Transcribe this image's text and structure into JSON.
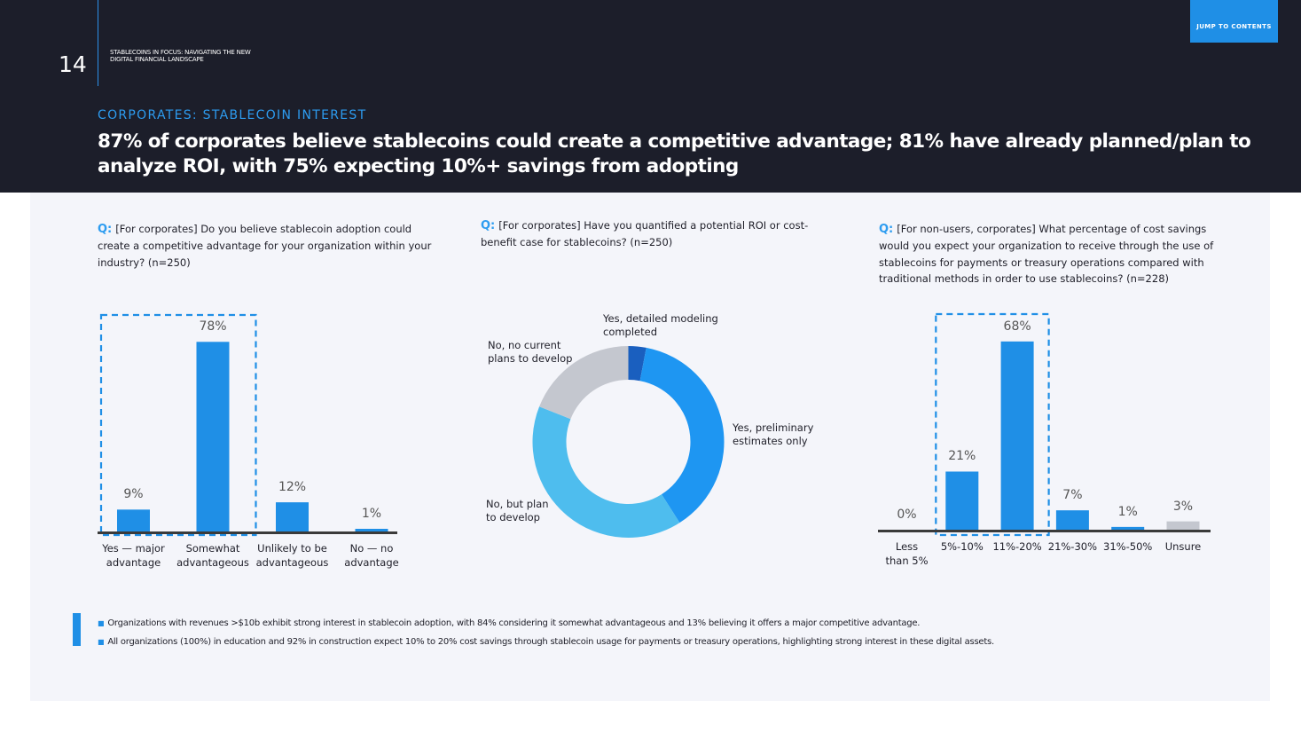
{
  "header": {
    "page_number": "14",
    "doc_title": "STABLECOINS IN FOCUS: NAVIGATING THE NEW DIGITAL FINANCIAL LANDSCAPE",
    "jump_button": "JUMP TO CONTENTS",
    "section_label": "CORPORATES: STABLECOIN INTEREST",
    "headline": "87% of corporates believe stablecoins could create a competitive advantage; 81% have already planned/plan to analyze ROI, with 75% expecting 10%+ savings from adopting"
  },
  "q_prefix": "Q:",
  "questions": {
    "q1": "[For corporates] Do you believe stablecoin adoption could create a competitive advantage for your organization within your industry?  (n=250)",
    "q2": "[For corporates] Have you quantified a potential ROI or cost-benefit case for stablecoins? (n=250)",
    "q3": "[For non-users, corporates] What percentage of cost savings would you expect your organization to receive through the use of stablecoins for payments or treasury operations compared with traditional methods in order to use stablecoins? (n=228)"
  },
  "colors": {
    "accent": "#1f8fe6",
    "dark_blue": "#1a5fbf",
    "mid_blue": "#1e96f2",
    "light_blue": "#4ebdee",
    "grey": "#c4c7cf",
    "header_bg": "#1c1e2a"
  },
  "chart_data": [
    {
      "type": "bar",
      "categories": [
        "Yes — major advantage",
        "Somewhat advantageous",
        "Unlikely to be advantageous",
        "No — no advantage"
      ],
      "category_lines": [
        [
          "Yes — major",
          "advantage"
        ],
        [
          "Somewhat",
          "advantageous"
        ],
        [
          "Unlikely to be",
          "advantageous"
        ],
        [
          "No — no",
          "advantage"
        ]
      ],
      "values": [
        9,
        78,
        12,
        1
      ],
      "value_labels": [
        "9%",
        "78%",
        "12%",
        "1%"
      ],
      "highlighted": [
        0,
        1
      ],
      "ylim": [
        0,
        100
      ]
    },
    {
      "type": "pie",
      "donut": true,
      "labels": [
        "Yes, detailed modeling completed",
        "Yes, preliminary estimates only",
        "No, but plan to develop",
        "No, no current plans to develop"
      ],
      "label_lines": [
        [
          "Yes, detailed modeling",
          "completed"
        ],
        [
          "Yes, preliminary",
          "estimates only"
        ],
        [
          "No, but plan",
          "to develop"
        ],
        [
          "No, no current",
          "plans to develop"
        ]
      ],
      "values": [
        3,
        38,
        40,
        19
      ],
      "colors": [
        "#1a5fbf",
        "#1e96f2",
        "#4ebdee",
        "#c4c7cf"
      ]
    },
    {
      "type": "bar",
      "categories": [
        "Less than 5%",
        "5%-10%",
        "11%-20%",
        "21%-30%",
        "31%-50%",
        "Unsure"
      ],
      "category_lines": [
        [
          "Less",
          "than 5%"
        ],
        [
          "5%-10%"
        ],
        [
          "11%-20%"
        ],
        [
          "21%-30%"
        ],
        [
          "31%-50%"
        ],
        [
          "Unsure"
        ]
      ],
      "values": [
        0,
        21,
        68,
        7,
        1,
        3
      ],
      "value_labels": [
        "0%",
        "21%",
        "68%",
        "7%",
        "1%",
        "3%"
      ],
      "colors": [
        "#1f8fe6",
        "#1f8fe6",
        "#1f8fe6",
        "#1f8fe6",
        "#1f8fe6",
        "#c4c7cf"
      ],
      "highlighted": [
        1,
        2
      ],
      "ylim": [
        0,
        100
      ]
    }
  ],
  "notes": [
    "Organizations with revenues >$10b exhibit strong interest in stablecoin adoption, with 84% considering it somewhat advantageous and 13% believing it offers a major competitive advantage.",
    "All organizations (100%) in education and 92% in construction expect 10% to 20% cost savings through stablecoin usage for payments or treasury operations, highlighting strong interest in these digital assets."
  ]
}
